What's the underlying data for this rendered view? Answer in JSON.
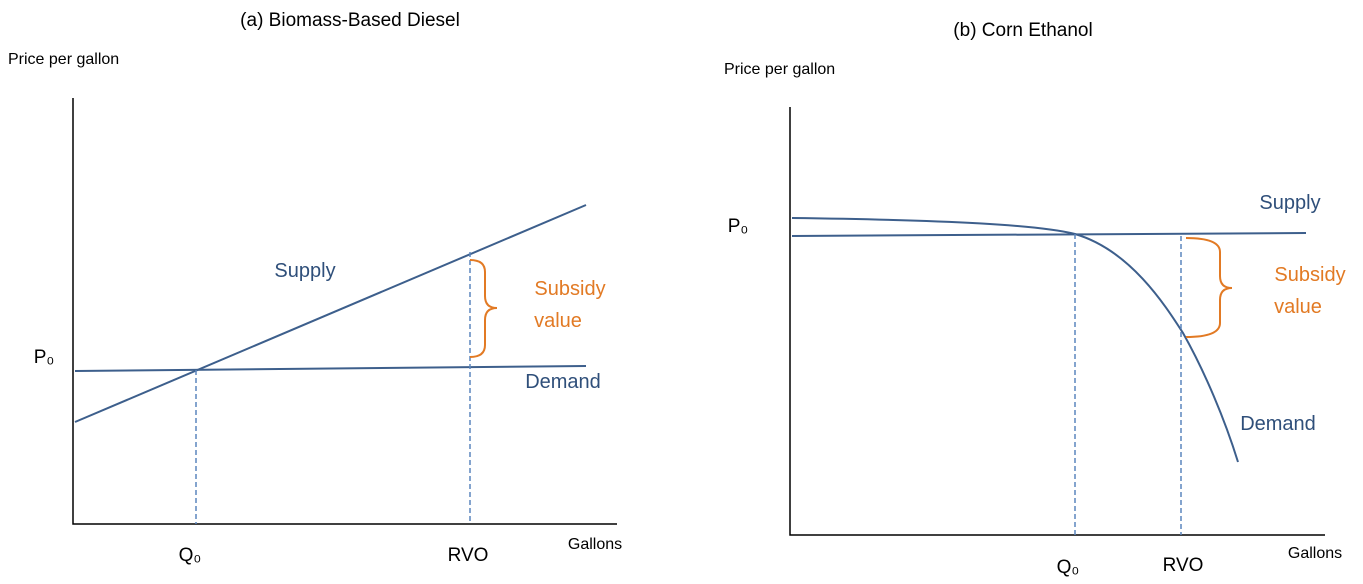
{
  "panels": [
    {
      "title": "(a) Biomass-Based Diesel",
      "y_axis_label": "Price per gallon",
      "x_axis_label": "Gallons",
      "price_label": "P₀",
      "quantity_label": "Q₀",
      "rvo_label": "RVO",
      "supply_label": "Supply",
      "demand_label": "Demand",
      "subsidy_label": [
        "Subsidy",
        "value"
      ]
    },
    {
      "title": "(b) Corn Ethanol",
      "y_axis_label": "Price per gallon",
      "x_axis_label": "Gallons",
      "price_label": "P₀",
      "quantity_label": "Q₀",
      "rvo_label": "RVO",
      "supply_label": "Supply",
      "demand_label": "Demand",
      "subsidy_label": [
        "Subsidy",
        "value"
      ]
    }
  ]
}
